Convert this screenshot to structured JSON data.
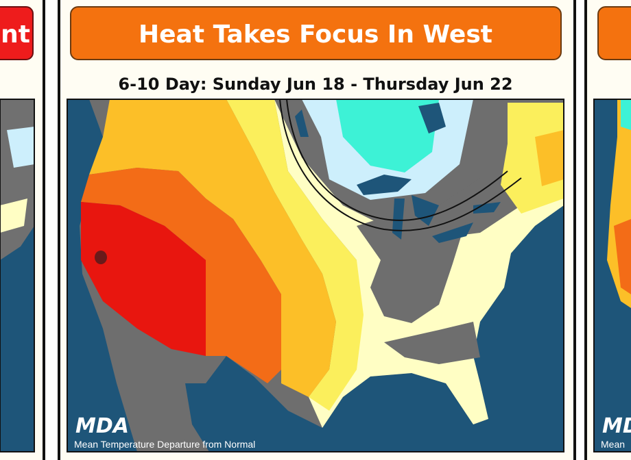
{
  "left_panel": {
    "title": "nt"
  },
  "main_panel": {
    "title": "Heat Takes Focus In West",
    "subtitle": "6-10 Day: Sunday Jun 18 - Thursday Jun 22",
    "logo": "MDA",
    "caption": "Mean Temperature Departure from Normal"
  },
  "right_panel": {
    "logo": "MDA",
    "caption": "Mean"
  }
}
